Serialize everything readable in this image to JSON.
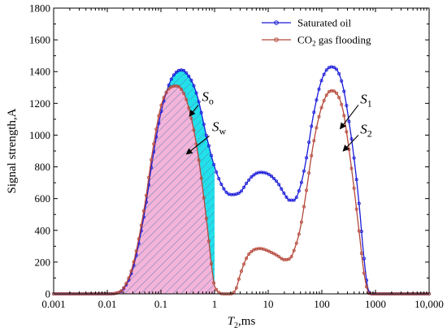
{
  "chart_data": {
    "type": "line",
    "xscale": "log",
    "xlim": [
      0.001,
      10000
    ],
    "ylim": [
      0,
      1800
    ],
    "xlabel_main": "T",
    "xlabel_sub": "2",
    "xlabel_rest": ",ms",
    "ylabel": "Signal strength,A",
    "xticks": [
      0.001,
      0.01,
      0.1,
      1,
      10,
      100,
      1000,
      10000
    ],
    "xtick_labels": [
      "0.001",
      "0.01",
      "0.1",
      "1",
      "10",
      "100",
      "1000",
      "10,000"
    ],
    "yticks": [
      0,
      200,
      400,
      600,
      800,
      1000,
      1200,
      1400,
      1600,
      1800
    ],
    "ytick_labels": [
      "0",
      "200",
      "400",
      "600",
      "800",
      "1000",
      "1200",
      "1400",
      "1600",
      "1800"
    ],
    "legend_position": "top-right",
    "series": [
      {
        "name": "Saturated oil",
        "color": "#1a1ad9",
        "x": [
          0.001,
          0.005,
          0.01,
          0.015,
          0.02,
          0.03,
          0.05,
          0.07,
          0.1,
          0.15,
          0.2,
          0.25,
          0.3,
          0.4,
          0.5,
          0.7,
          1.0,
          1.5,
          2.0,
          3.0,
          4.0,
          5.0,
          7.0,
          10.0,
          15.0,
          20.0,
          25.0,
          30.0,
          40.0,
          50.0,
          70.0,
          100.0,
          150.0,
          200.0,
          250.0,
          300.0,
          400.0,
          500.0,
          600.0,
          700.0,
          800.0,
          1000.0,
          10000.0
        ],
        "values": [
          0,
          0,
          0,
          5,
          30,
          160,
          520,
          850,
          1140,
          1340,
          1400,
          1410,
          1390,
          1320,
          1220,
          1000,
          800,
          660,
          625,
          640,
          700,
          740,
          765,
          755,
          700,
          630,
          590,
          590,
          680,
          830,
          1130,
          1350,
          1430,
          1400,
          1300,
          1150,
          850,
          550,
          250,
          60,
          0,
          0,
          0
        ]
      },
      {
        "name": "CO2 gas flooding",
        "legend_main": "CO",
        "legend_sub": "2",
        "legend_rest": " gas flooding",
        "color": "#b5483a",
        "x": [
          0.001,
          0.005,
          0.01,
          0.015,
          0.02,
          0.03,
          0.05,
          0.07,
          0.1,
          0.15,
          0.2,
          0.25,
          0.3,
          0.4,
          0.5,
          0.7,
          0.9,
          1.0,
          1.5,
          2.0,
          2.5,
          3.0,
          4.0,
          5.0,
          7.0,
          10.0,
          15.0,
          20.0,
          25.0,
          30.0,
          40.0,
          50.0,
          70.0,
          100.0,
          150.0,
          200.0,
          250.0,
          300.0,
          400.0,
          500.0,
          600.0,
          700.0,
          800.0,
          1000.0,
          10000.0
        ],
        "values": [
          0,
          0,
          0,
          5,
          35,
          180,
          560,
          900,
          1180,
          1300,
          1310,
          1280,
          1220,
          1050,
          860,
          480,
          150,
          50,
          0,
          0,
          30,
          120,
          230,
          270,
          285,
          270,
          240,
          215,
          220,
          270,
          420,
          620,
          950,
          1180,
          1280,
          1250,
          1150,
          980,
          660,
          380,
          150,
          30,
          0,
          0,
          0
        ]
      }
    ],
    "fills": {
      "difference_color": "#22e0ea",
      "area_color": "#f4b3d8",
      "hatch_color": "#4a7fb5"
    },
    "annotations": [
      {
        "main": "S",
        "sub": "o",
        "x": 0.58,
        "y": 1215,
        "arrow_from_x": 0.5,
        "arrow_from_y": 1190,
        "arrow_to_x": 0.34,
        "arrow_to_y": 1120
      },
      {
        "main": "S",
        "sub": "w",
        "x": 0.9,
        "y": 1025,
        "arrow_from_x": 0.8,
        "arrow_from_y": 995,
        "arrow_to_x": 0.3,
        "arrow_to_y": 880
      },
      {
        "main": "S",
        "sub": "1",
        "x": 520,
        "y": 1200,
        "arrow_from_x": 480,
        "arrow_from_y": 1190,
        "arrow_to_x": 220,
        "arrow_to_y": 1040
      },
      {
        "main": "S",
        "sub": "2",
        "x": 520,
        "y": 1010,
        "arrow_from_x": 480,
        "arrow_from_y": 1000,
        "arrow_to_x": 250,
        "arrow_to_y": 900
      }
    ]
  }
}
